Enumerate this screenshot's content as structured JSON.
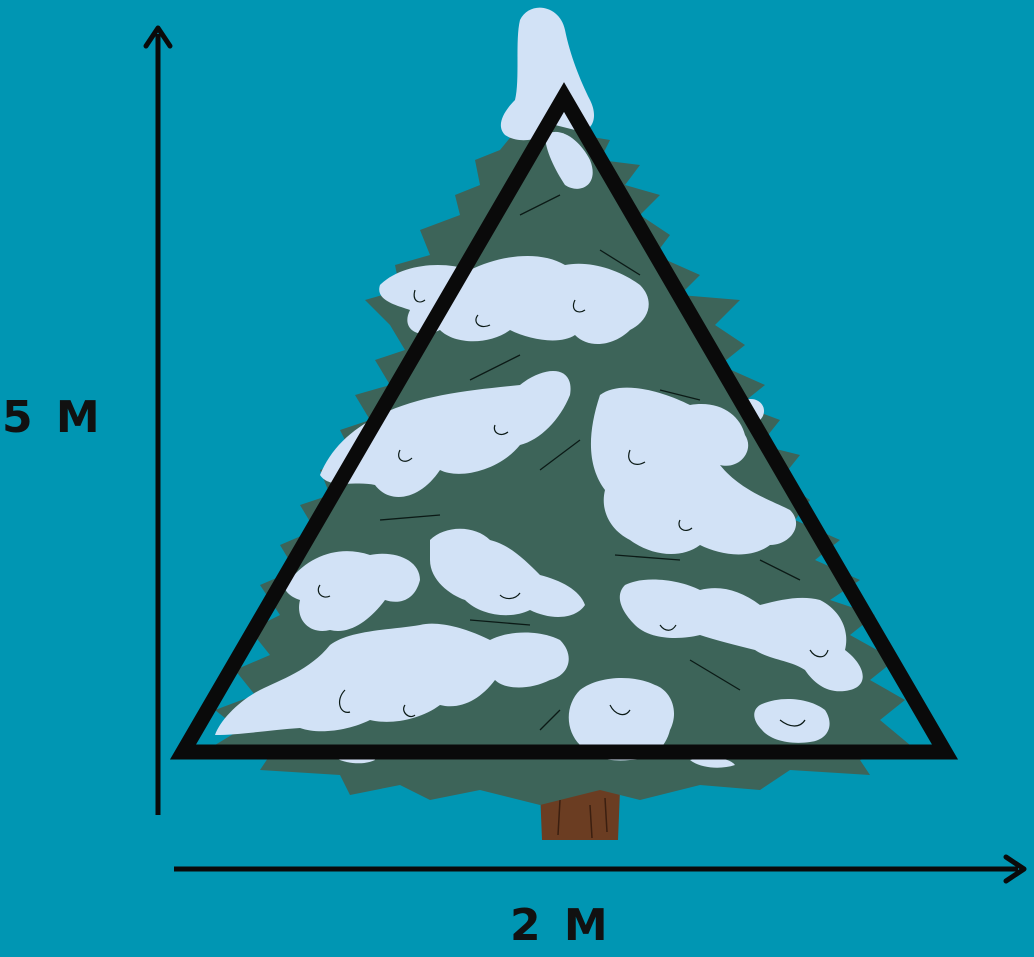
{
  "diagram": {
    "height_label": "5 M",
    "width_label": "2 M",
    "colors": {
      "background": "#0096b3",
      "foliage": "#3d6459",
      "snow": "#d2e2f6",
      "trunk": "#6b3d22",
      "outline": "#0a0a0a"
    },
    "icons": [
      "snowy-pine-tree-icon",
      "triangle-outline-icon",
      "vertical-arrow-icon",
      "horizontal-arrow-icon"
    ]
  }
}
